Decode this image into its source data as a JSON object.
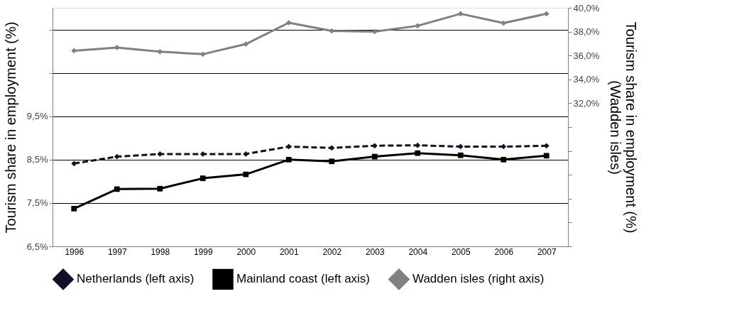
{
  "chart_data": {
    "type": "line",
    "ylabel": "Tourism share in employment (%)",
    "y2label": "Tourism share in employment (%)\n(Wadden isles)",
    "categories": [
      "1996",
      "1997",
      "1998",
      "1999",
      "2000",
      "2001",
      "2002",
      "2003",
      "2004",
      "2005",
      "2006",
      "2007"
    ],
    "series": [
      {
        "name": "Netherlands (left axis)",
        "color": "#10102a",
        "marker": "diamond",
        "line_style": "dashed",
        "values": [
          8.41,
          8.57,
          8.63,
          8.63,
          8.63,
          8.8,
          8.77,
          8.82,
          8.83,
          8.8,
          8.8,
          8.82
        ]
      },
      {
        "name": "Mainland coast (left axis)",
        "color": "#000000",
        "marker": "square",
        "line_style": "solid",
        "values": [
          7.37,
          7.82,
          7.83,
          8.07,
          8.16,
          8.5,
          8.46,
          8.57,
          8.65,
          8.6,
          8.5,
          8.59
        ]
      },
      {
        "name": "Wadden isles (right axis)",
        "color": "#808080",
        "marker": "diamond",
        "line_style": "solid",
        "axis": "y2",
        "values": [
          36.4,
          36.67,
          36.32,
          36.11,
          36.96,
          38.75,
          38.06,
          38.01,
          38.49,
          39.5,
          38.72,
          39.5
        ]
      }
    ],
    "ylim": [
      6.5,
      12.0
    ],
    "yticks": [
      {
        "value": 6.5,
        "label": "6,5%"
      },
      {
        "value": 7.5,
        "label": "7,5%"
      },
      {
        "value": 8.5,
        "label": "8,5%"
      },
      {
        "value": 9.5,
        "label": "9,5%"
      },
      {
        "value": 10.5,
        "label": null
      },
      {
        "value": 11.5,
        "label": null
      }
    ],
    "y2lim": [
      20,
      40
    ],
    "y2ticks": [
      {
        "value": 20,
        "label": null
      },
      {
        "value": 22,
        "label": null
      },
      {
        "value": 24,
        "label": null
      },
      {
        "value": 26,
        "label": null
      },
      {
        "value": 28,
        "label": null
      },
      {
        "value": 30,
        "label": null
      },
      {
        "value": 32,
        "label": "32,0%"
      },
      {
        "value": 34,
        "label": "34,0%"
      },
      {
        "value": 36,
        "label": "36,0%"
      },
      {
        "value": 38,
        "label": "38,0%"
      },
      {
        "value": 40,
        "label": "40,0%"
      }
    ],
    "grid": "y",
    "legend": "bottom"
  }
}
